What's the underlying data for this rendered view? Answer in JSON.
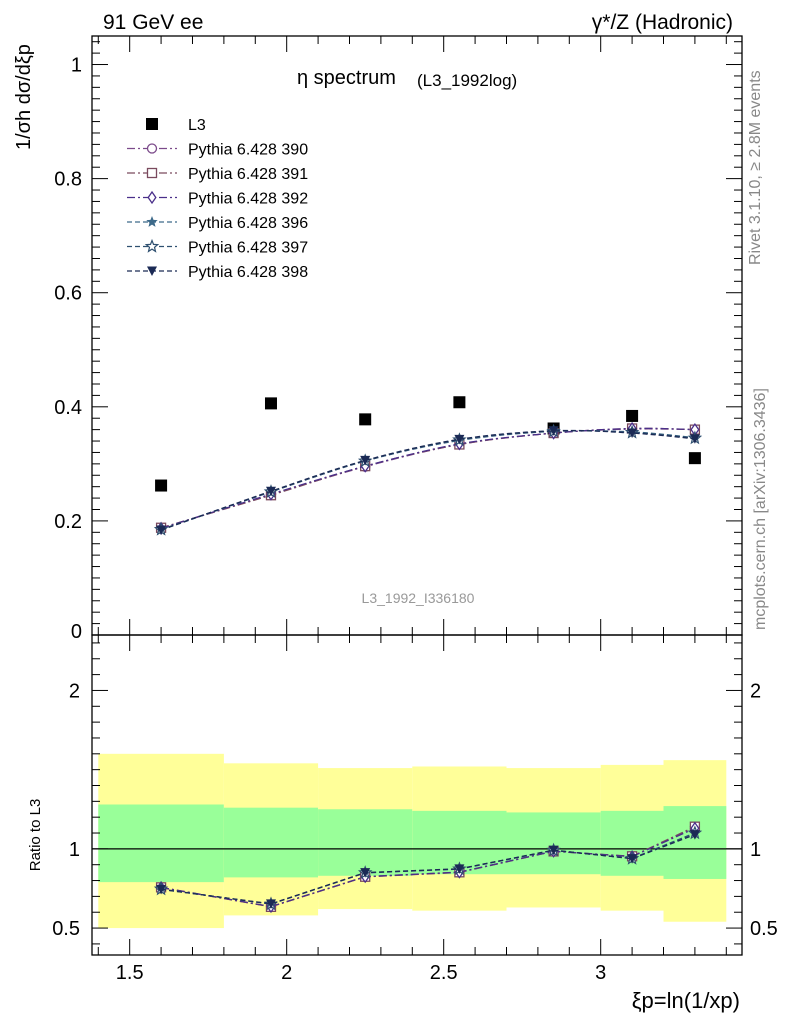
{
  "header": {
    "left": "91 GeV ee",
    "right": "γ*/Z (Hadronic)"
  },
  "side_labels": {
    "rivet": "Rivet 3.1.10, ≥ 2.8M events",
    "mcplots": "mcplots.cern.ch [arXiv:1306.3436]"
  },
  "colors": {
    "data": "#000000",
    "p390": "#7b4a8a",
    "p391": "#7a4a5e",
    "p392": "#4a2f8a",
    "p396": "#3d6a8a",
    "p397": "#2f5070",
    "p398": "#1b2a55",
    "band_inner": "#99ff99",
    "band_outer": "#ffff99"
  },
  "chart_data": [
    {
      "type": "scatter",
      "title": "η spectrum",
      "title_sub": "(L3_1992log)",
      "ylabel": "1/σh dσ/dξp",
      "watermark": "L3_1992_I336180",
      "xlim": [
        1.38,
        3.45
      ],
      "ylim": [
        0,
        1.05
      ],
      "yticks": [
        "0",
        "0.2",
        "0.4",
        "0.6",
        "0.8",
        "1"
      ],
      "grid": false,
      "legend_position": "top-left",
      "x": [
        1.6,
        1.95,
        2.25,
        2.55,
        2.85,
        3.1,
        3.3
      ],
      "bin_edges": [
        1.4,
        1.8,
        2.1,
        2.4,
        2.7,
        3.0,
        3.2,
        3.4
      ],
      "series": [
        {
          "name": "L3",
          "values": [
            0.262,
            0.406,
            0.378,
            0.408,
            0.362,
            0.384,
            0.31
          ]
        },
        {
          "name": "Pythia 6.428 390",
          "values": [
            0.187,
            0.246,
            0.295,
            0.334,
            0.354,
            0.361,
            0.36
          ]
        },
        {
          "name": "Pythia 6.428 391",
          "values": [
            0.188,
            0.245,
            0.296,
            0.334,
            0.354,
            0.362,
            0.36
          ]
        },
        {
          "name": "Pythia 6.428 392",
          "values": [
            0.187,
            0.247,
            0.296,
            0.335,
            0.354,
            0.362,
            0.36
          ]
        },
        {
          "name": "Pythia 6.428 396",
          "values": [
            0.184,
            0.251,
            0.305,
            0.341,
            0.357,
            0.356,
            0.346
          ]
        },
        {
          "name": "Pythia 6.428 397",
          "values": [
            0.185,
            0.251,
            0.305,
            0.342,
            0.357,
            0.355,
            0.345
          ]
        },
        {
          "name": "Pythia 6.428 398",
          "values": [
            0.184,
            0.252,
            0.306,
            0.343,
            0.358,
            0.354,
            0.344
          ]
        }
      ]
    },
    {
      "type": "line",
      "ylabel": "Ratio to L3",
      "xlabel": "ξp=ln(1/xp)",
      "xlim": [
        1.38,
        3.45
      ],
      "ylim": [
        0.33,
        2.35
      ],
      "xticks": [
        "1.5",
        "2",
        "2.5",
        "3"
      ],
      "yticks": [
        "0.5",
        "1",
        "2"
      ],
      "reference_line": 1,
      "x": [
        1.6,
        1.95,
        2.25,
        2.55,
        2.85,
        3.1,
        3.3
      ],
      "bands": {
        "edges": [
          1.4,
          1.8,
          2.1,
          2.4,
          2.7,
          3.0,
          3.2,
          3.4
        ],
        "inner_low": [
          0.79,
          0.82,
          0.83,
          0.84,
          0.84,
          0.83,
          0.81
        ],
        "inner_high": [
          1.28,
          1.26,
          1.25,
          1.24,
          1.23,
          1.24,
          1.27
        ],
        "outer_low": [
          0.5,
          0.58,
          0.62,
          0.61,
          0.63,
          0.61,
          0.54
        ],
        "outer_high": [
          1.6,
          1.54,
          1.51,
          1.52,
          1.51,
          1.53,
          1.56
        ]
      },
      "series": [
        {
          "name": "Pythia 6.428 390",
          "values": [
            0.755,
            0.635,
            0.823,
            0.851,
            0.985,
            0.952,
            1.14
          ]
        },
        {
          "name": "Pythia 6.428 391",
          "values": [
            0.757,
            0.634,
            0.824,
            0.852,
            0.984,
            0.953,
            1.14
          ]
        },
        {
          "name": "Pythia 6.428 392",
          "values": [
            0.756,
            0.636,
            0.825,
            0.853,
            0.985,
            0.951,
            1.13
          ]
        },
        {
          "name": "Pythia 6.428 396",
          "values": [
            0.745,
            0.652,
            0.848,
            0.872,
            0.99,
            0.94,
            1.1
          ]
        },
        {
          "name": "Pythia 6.428 397",
          "values": [
            0.746,
            0.651,
            0.849,
            0.873,
            0.991,
            0.939,
            1.1
          ]
        },
        {
          "name": "Pythia 6.428 398",
          "values": [
            0.744,
            0.653,
            0.85,
            0.874,
            0.992,
            0.938,
            1.09
          ]
        }
      ]
    }
  ]
}
